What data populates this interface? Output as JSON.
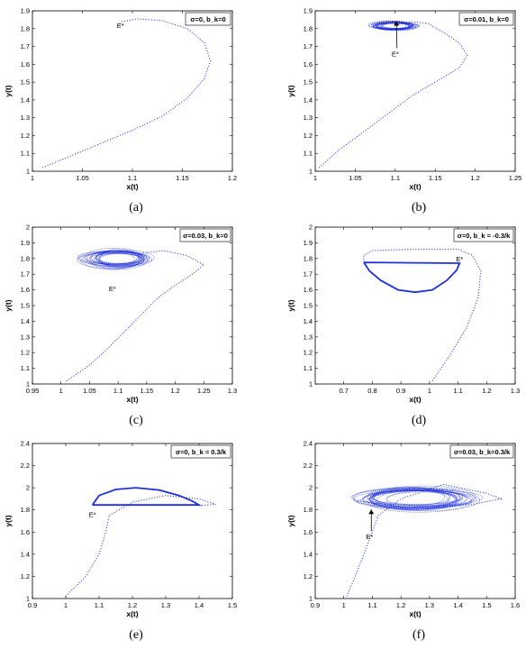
{
  "series_color": "#1f2fd8",
  "chart_data": [
    {
      "type": "line",
      "panel_label": "(a)",
      "legend": "σ=0, b_k=0",
      "xlabel": "x(t)",
      "ylabel": "y(t)",
      "xlim": [
        1.0,
        1.2
      ],
      "ylim": [
        1.0,
        1.9
      ],
      "xticks": [
        1,
        1.05,
        1.1,
        1.15,
        1.2
      ],
      "yticks": [
        1,
        1.1,
        1.2,
        1.3,
        1.4,
        1.5,
        1.6,
        1.7,
        1.8,
        1.9
      ],
      "tick_labels_x": [
        "1",
        "1.05",
        "1.1",
        "1.15",
        "1.2"
      ],
      "tick_labels_y": [
        "1",
        "1.1",
        "1.2",
        "1.3",
        "1.4",
        "1.5",
        "1.6",
        "1.7",
        "1.8",
        "1.9"
      ],
      "annotations": [
        {
          "text": "E*",
          "x": 1.088,
          "y": 1.82
        }
      ],
      "series": [
        {
          "style": "dotted",
          "points": [
            [
              1.01,
              1.02
            ],
            [
              1.04,
              1.09
            ],
            [
              1.07,
              1.16
            ],
            [
              1.1,
              1.23
            ],
            [
              1.13,
              1.31
            ],
            [
              1.155,
              1.41
            ],
            [
              1.172,
              1.52
            ],
            [
              1.178,
              1.62
            ],
            [
              1.172,
              1.72
            ],
            [
              1.155,
              1.8
            ],
            [
              1.13,
              1.845
            ],
            [
              1.105,
              1.855
            ],
            [
              1.09,
              1.84
            ],
            [
              1.088,
              1.825
            ]
          ]
        }
      ]
    },
    {
      "type": "line",
      "panel_label": "(b)",
      "legend": "σ=0.01, b_k=0",
      "xlabel": "x(t)",
      "ylabel": "y(t)",
      "xlim": [
        1.0,
        1.25
      ],
      "ylim": [
        1.0,
        1.9
      ],
      "xticks": [
        1,
        1.05,
        1.1,
        1.15,
        1.2,
        1.25
      ],
      "yticks": [
        1,
        1.1,
        1.2,
        1.3,
        1.4,
        1.5,
        1.6,
        1.7,
        1.8,
        1.9
      ],
      "tick_labels_x": [
        "1",
        "1.05",
        "1.1",
        "1.15",
        "1.2",
        "1.25"
      ],
      "tick_labels_y": [
        "1",
        "1.1",
        "1.2",
        "1.3",
        "1.4",
        "1.5",
        "1.6",
        "1.7",
        "1.8",
        "1.9"
      ],
      "annotations": [
        {
          "text": "E*",
          "x": 1.1,
          "y": 1.66
        }
      ],
      "cluster": {
        "cx": 1.1,
        "cy": 1.815,
        "rx": 0.028,
        "ry": 0.025
      },
      "series": [
        {
          "style": "dotted",
          "points": [
            [
              1.005,
              1.02
            ],
            [
              1.03,
              1.12
            ],
            [
              1.06,
              1.22
            ],
            [
              1.09,
              1.32
            ],
            [
              1.12,
              1.42
            ],
            [
              1.15,
              1.5
            ],
            [
              1.18,
              1.58
            ],
            [
              1.19,
              1.65
            ],
            [
              1.18,
              1.72
            ],
            [
              1.16,
              1.78
            ],
            [
              1.14,
              1.83
            ],
            [
              1.12,
              1.84
            ],
            [
              1.1,
              1.82
            ]
          ]
        }
      ]
    },
    {
      "type": "line",
      "panel_label": "(c)",
      "legend": "σ=0.03, b_k=0",
      "xlabel": "x(t)",
      "ylabel": "y(t)",
      "xlim": [
        0.95,
        1.3
      ],
      "ylim": [
        1.0,
        2.0
      ],
      "xticks": [
        0.95,
        1,
        1.05,
        1.1,
        1.15,
        1.2,
        1.25,
        1.3
      ],
      "yticks": [
        1,
        1.1,
        1.2,
        1.3,
        1.4,
        1.5,
        1.6,
        1.7,
        1.8,
        1.9,
        2
      ],
      "tick_labels_x": [
        "0.95",
        "1",
        "1.05",
        "1.1",
        "1.15",
        "1.2",
        "1.25",
        "1.3"
      ],
      "tick_labels_y": [
        "1",
        "1.1",
        "1.2",
        "1.3",
        "1.4",
        "1.5",
        "1.6",
        "1.7",
        "1.8",
        "1.9",
        "2"
      ],
      "annotations": [
        {
          "text": "E*",
          "x": 1.09,
          "y": 1.61
        }
      ],
      "cluster": {
        "cx": 1.1,
        "cy": 1.8,
        "rx": 0.06,
        "ry": 0.06
      },
      "series": [
        {
          "style": "dotted",
          "points": [
            [
              1.01,
              1.02
            ],
            [
              1.05,
              1.12
            ],
            [
              1.08,
              1.22
            ],
            [
              1.11,
              1.33
            ],
            [
              1.14,
              1.44
            ],
            [
              1.17,
              1.55
            ],
            [
              1.2,
              1.63
            ],
            [
              1.23,
              1.7
            ],
            [
              1.25,
              1.76
            ],
            [
              1.22,
              1.82
            ],
            [
              1.18,
              1.85
            ],
            [
              1.13,
              1.83
            ]
          ]
        }
      ]
    },
    {
      "type": "line",
      "panel_label": "(d)",
      "legend": "σ=0, b_k = -0.3/k",
      "xlabel": "x(t)",
      "ylabel": "y(t)",
      "xlim": [
        0.6,
        1.3
      ],
      "ylim": [
        1.0,
        2.0
      ],
      "xticks": [
        0.7,
        0.8,
        0.9,
        1,
        1.1,
        1.2,
        1.3
      ],
      "yticks": [
        1,
        1.1,
        1.2,
        1.3,
        1.4,
        1.5,
        1.6,
        1.7,
        1.8,
        1.9,
        2
      ],
      "tick_labels_x": [
        "0.7",
        "0.8",
        "0.9",
        "1",
        "1.1",
        "1.2",
        "1.3"
      ],
      "tick_labels_y": [
        "1",
        "1.1",
        "1.2",
        "1.3",
        "1.4",
        "1.5",
        "1.6",
        "1.7",
        "1.8",
        "1.9",
        "2"
      ],
      "annotations": [
        {
          "text": "E*",
          "x": 1.105,
          "y": 1.8
        }
      ],
      "series": [
        {
          "style": "dotted",
          "points": [
            [
              1.01,
              1.02
            ],
            [
              1.07,
              1.18
            ],
            [
              1.13,
              1.36
            ],
            [
              1.17,
              1.55
            ],
            [
              1.18,
              1.72
            ],
            [
              1.15,
              1.82
            ],
            [
              1.1,
              1.86
            ],
            [
              0.95,
              1.86
            ],
            [
              0.8,
              1.85
            ],
            [
              0.77,
              1.82
            ],
            [
              0.77,
              1.78
            ]
          ]
        },
        {
          "style": "solid",
          "points": [
            [
              0.77,
              1.775
            ],
            [
              0.79,
              1.72
            ],
            [
              0.83,
              1.66
            ],
            [
              0.89,
              1.6
            ],
            [
              0.95,
              1.585
            ],
            [
              1.01,
              1.6
            ],
            [
              1.06,
              1.66
            ],
            [
              1.095,
              1.725
            ],
            [
              1.105,
              1.77
            ],
            [
              0.77,
              1.775
            ]
          ]
        }
      ]
    },
    {
      "type": "line",
      "panel_label": "(e)",
      "legend": "σ=0, b_k = 0.3/k",
      "xlabel": "x(t)",
      "ylabel": "y(t)",
      "xlim": [
        0.9,
        1.5
      ],
      "ylim": [
        1.0,
        2.4
      ],
      "xticks": [
        0.9,
        1,
        1.1,
        1.2,
        1.3,
        1.4,
        1.5
      ],
      "yticks": [
        1,
        1.2,
        1.4,
        1.6,
        1.8,
        2,
        2.2,
        2.4
      ],
      "tick_labels_x": [
        "0.9",
        "1",
        "1.1",
        "1.2",
        "1.3",
        "1.4",
        "1.5"
      ],
      "tick_labels_y": [
        "1",
        "1.2",
        "1.4",
        "1.6",
        "1.8",
        "2",
        "2.2",
        "2.4"
      ],
      "annotations": [
        {
          "text": "E*",
          "x": 1.08,
          "y": 1.76
        }
      ],
      "series": [
        {
          "style": "dotted",
          "points": [
            [
              1.0,
              1.02
            ],
            [
              1.06,
              1.2
            ],
            [
              1.1,
              1.4
            ],
            [
              1.12,
              1.6
            ],
            [
              1.13,
              1.75
            ],
            [
              1.2,
              1.87
            ],
            [
              1.3,
              1.93
            ],
            [
              1.4,
              1.9
            ],
            [
              1.45,
              1.85
            ],
            [
              1.4,
              1.84
            ]
          ]
        },
        {
          "style": "solid",
          "points": [
            [
              1.08,
              1.845
            ],
            [
              1.1,
              1.93
            ],
            [
              1.15,
              1.985
            ],
            [
              1.21,
              2.0
            ],
            [
              1.28,
              1.98
            ],
            [
              1.34,
              1.93
            ],
            [
              1.38,
              1.88
            ],
            [
              1.4,
              1.845
            ],
            [
              1.08,
              1.845
            ]
          ]
        }
      ]
    },
    {
      "type": "line",
      "panel_label": "(f)",
      "legend": "σ=0.03, b_k=0.3/k",
      "xlabel": "x(t)",
      "ylabel": "y(t)",
      "xlim": [
        0.9,
        1.6
      ],
      "ylim": [
        1.0,
        2.4
      ],
      "xticks": [
        0.9,
        1,
        1.1,
        1.2,
        1.3,
        1.4,
        1.5,
        1.6
      ],
      "yticks": [
        1,
        1.2,
        1.4,
        1.6,
        1.8,
        2,
        2.2,
        2.4
      ],
      "tick_labels_x": [
        "0.9",
        "1",
        "1.1",
        "1.2",
        "1.3",
        "1.4",
        "1.5",
        "1.6"
      ],
      "tick_labels_y": [
        "1",
        "1.2",
        "1.4",
        "1.6",
        "1.8",
        "2",
        "2.2",
        "2.4"
      ],
      "annotations": [
        {
          "text": "E*",
          "x": 1.09,
          "y": 1.56
        }
      ],
      "cluster": {
        "cx": 1.25,
        "cy": 1.9,
        "rx": 0.2,
        "ry": 0.1
      },
      "series": [
        {
          "style": "dotted",
          "points": [
            [
              1.01,
              1.02
            ],
            [
              1.04,
              1.2
            ],
            [
              1.07,
              1.4
            ],
            [
              1.1,
              1.6
            ],
            [
              1.12,
              1.75
            ],
            [
              1.2,
              1.9
            ],
            [
              1.35,
              2.03
            ],
            [
              1.5,
              1.95
            ],
            [
              1.55,
              1.9
            ],
            [
              1.45,
              1.85
            ],
            [
              1.3,
              1.83
            ],
            [
              1.15,
              1.85
            ],
            [
              1.05,
              1.88
            ],
            [
              1.1,
              1.95
            ],
            [
              1.25,
              2.0
            ],
            [
              1.4,
              1.98
            ]
          ]
        }
      ]
    }
  ]
}
